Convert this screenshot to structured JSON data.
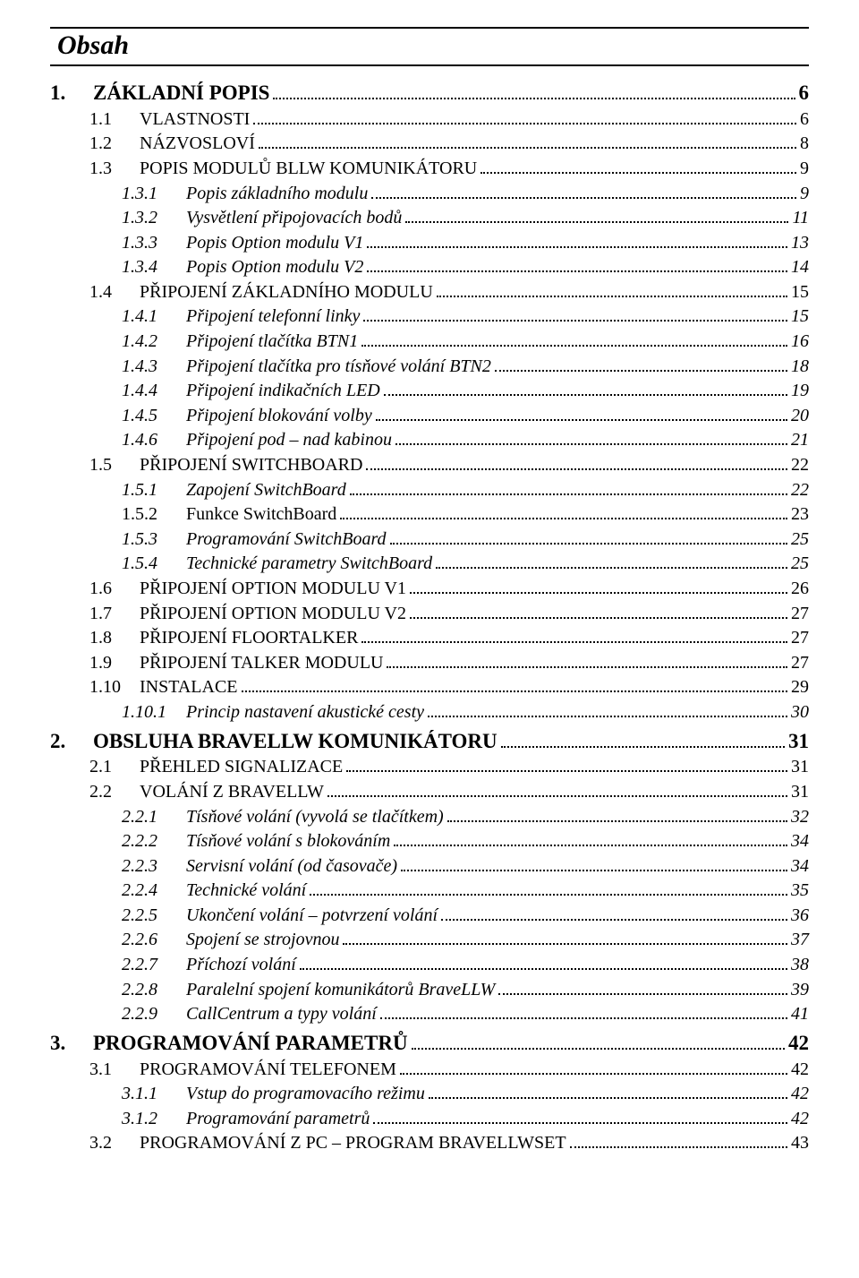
{
  "title": "Obsah",
  "entries": [
    {
      "level": 1,
      "num": "1.",
      "text": "ZÁKLADNÍ POPIS",
      "page": "6"
    },
    {
      "level": 2,
      "num": "1.1",
      "text": "VLASTNOSTI",
      "page": "6",
      "smallcaps": true
    },
    {
      "level": 2,
      "num": "1.2",
      "text": "NÁZVOSLOVÍ",
      "page": "8",
      "smallcaps": true
    },
    {
      "level": 2,
      "num": "1.3",
      "text": "POPIS MODULŮ BLLW KOMUNIKÁTORU",
      "page": "9",
      "smallcaps": true
    },
    {
      "level": 3,
      "num": "1.3.1",
      "text": "Popis základního modulu",
      "page": "9"
    },
    {
      "level": 3,
      "num": "1.3.2",
      "text": "Vysvětlení připojovacích bodů",
      "page": "11"
    },
    {
      "level": 3,
      "num": "1.3.3",
      "text": "Popis Option modulu V1",
      "page": "13"
    },
    {
      "level": 3,
      "num": "1.3.4",
      "text": "Popis Option modulu V2",
      "page": "14"
    },
    {
      "level": 2,
      "num": "1.4",
      "text": "PŘIPOJENÍ ZÁKLADNÍHO MODULU",
      "page": "15",
      "smallcaps": true
    },
    {
      "level": 3,
      "num": "1.4.1",
      "text": "Připojení telefonní linky",
      "page": "15"
    },
    {
      "level": 3,
      "num": "1.4.2",
      "text": "Připojení tlačítka BTN1",
      "page": "16"
    },
    {
      "level": 3,
      "num": "1.4.3",
      "text": "Připojení tlačítka pro tísňové volání BTN2",
      "page": "18"
    },
    {
      "level": 3,
      "num": "1.4.4",
      "text": "Připojení indikačních LED",
      "page": "19"
    },
    {
      "level": 3,
      "num": "1.4.5",
      "text": "Připojení blokování volby",
      "page": "20"
    },
    {
      "level": 3,
      "num": "1.4.6",
      "text": "Připojení pod – nad kabinou",
      "page": "21"
    },
    {
      "level": 2,
      "num": "1.5",
      "text": "PŘIPOJENÍ SWITCHBOARD",
      "page": "22",
      "smallcaps": true
    },
    {
      "level": 3,
      "num": "1.5.1",
      "text": "Zapojení SwitchBoard",
      "page": "22"
    },
    {
      "level": 3,
      "num": "1.5.2",
      "text": "Funkce SwitchBoard",
      "page": "23",
      "upright": true
    },
    {
      "level": 3,
      "num": "1.5.3",
      "text": "Programování SwitchBoard",
      "page": "25"
    },
    {
      "level": 3,
      "num": "1.5.4",
      "text": "Technické parametry SwitchBoard",
      "page": "25"
    },
    {
      "level": 2,
      "num": "1.6",
      "text": "PŘIPOJENÍ OPTION MODULU V1",
      "page": "26",
      "smallcaps": true
    },
    {
      "level": 2,
      "num": "1.7",
      "text": "PŘIPOJENÍ OPTION MODULU V2",
      "page": "27",
      "smallcaps": true
    },
    {
      "level": 2,
      "num": "1.8",
      "text": "PŘIPOJENÍ FLOORTALKER",
      "page": "27",
      "smallcaps": true
    },
    {
      "level": 2,
      "num": "1.9",
      "text": "PŘIPOJENÍ TALKER MODULU",
      "page": "27",
      "smallcaps": true
    },
    {
      "level": 2,
      "num": "1.10",
      "text": "INSTALACE",
      "page": "29",
      "smallcaps": true
    },
    {
      "level": 3,
      "num": "1.10.1",
      "text": "Princip nastavení akustické cesty",
      "page": "30"
    },
    {
      "level": 1,
      "num": "2.",
      "text": "OBSLUHA BRAVELLW KOMUNIKÁTORU",
      "page": "31"
    },
    {
      "level": 2,
      "num": "2.1",
      "text": "PŘEHLED SIGNALIZACE",
      "page": "31",
      "smallcaps": true
    },
    {
      "level": 2,
      "num": "2.2",
      "text": "VOLÁNÍ Z BRAVELLW",
      "page": "31",
      "smallcaps": true
    },
    {
      "level": 3,
      "num": "2.2.1",
      "text": "Tísňové volání  (vyvolá se tlačítkem)",
      "page": "32"
    },
    {
      "level": 3,
      "num": "2.2.2",
      "text": "Tísňové volání s blokováním",
      "page": "34"
    },
    {
      "level": 3,
      "num": "2.2.3",
      "text": "Servisní volání (od časovače)",
      "page": "34"
    },
    {
      "level": 3,
      "num": "2.2.4",
      "text": "Technické volání",
      "page": "35"
    },
    {
      "level": 3,
      "num": "2.2.5",
      "text": "Ukončení volání – potvrzení volání",
      "page": "36"
    },
    {
      "level": 3,
      "num": "2.2.6",
      "text": "Spojení se strojovnou",
      "page": "37"
    },
    {
      "level": 3,
      "num": "2.2.7",
      "text": "Příchozí volání",
      "page": "38"
    },
    {
      "level": 3,
      "num": "2.2.8",
      "text": "Paralelní spojení komunikátorů BraveLLW",
      "page": "39"
    },
    {
      "level": 3,
      "num": "2.2.9",
      "text": "CallCentrum a typy volání",
      "page": "41"
    },
    {
      "level": 1,
      "num": "3.",
      "text": "PROGRAMOVÁNÍ PARAMETRŮ",
      "page": "42"
    },
    {
      "level": 2,
      "num": "3.1",
      "text": "PROGRAMOVÁNÍ TELEFONEM",
      "page": "42",
      "smallcaps": true
    },
    {
      "level": 3,
      "num": "3.1.1",
      "text": "Vstup do programovacího režimu",
      "page": "42"
    },
    {
      "level": 3,
      "num": "3.1.2",
      "text": "Programování parametrů",
      "page": "42"
    },
    {
      "level": 2,
      "num": "3.2",
      "text": "PROGRAMOVÁNÍ Z PC – PROGRAM BRAVELLWSET",
      "page": "43",
      "smallcaps": true
    }
  ]
}
